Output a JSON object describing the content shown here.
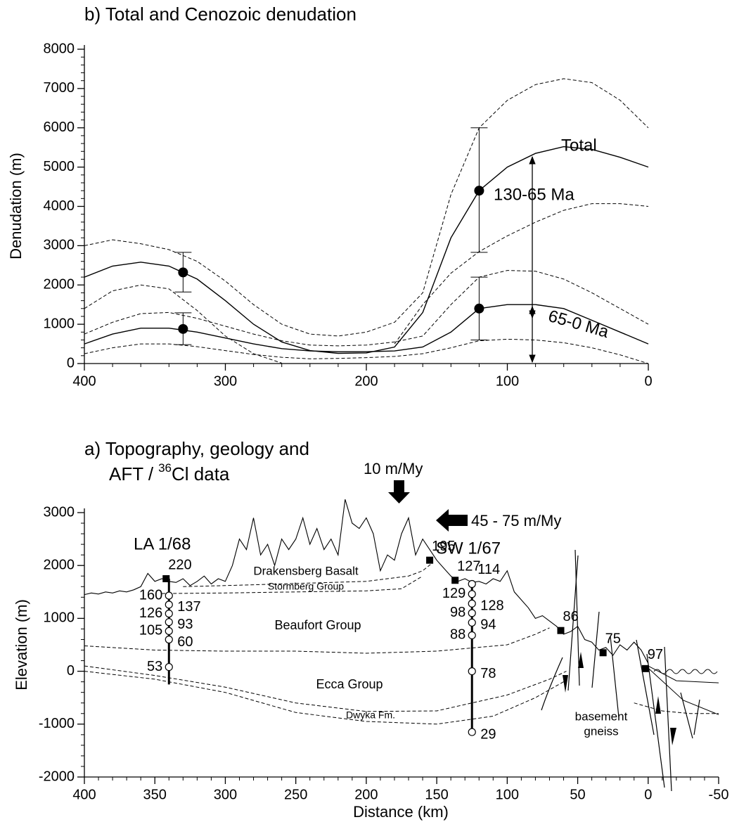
{
  "chart_data": [
    {
      "type": "line",
      "title": "b) Total and Cenozoic denudation",
      "ylabel": "Denudation (m)",
      "xlim": [
        400,
        0
      ],
      "ylim": [
        0,
        8000
      ],
      "xticks": [
        400,
        300,
        200,
        100,
        0
      ],
      "yticks": [
        0,
        1000,
        2000,
        3000,
        4000,
        5000,
        6000,
        7000,
        8000
      ],
      "x": [
        400,
        380,
        360,
        340,
        320,
        300,
        280,
        260,
        240,
        220,
        200,
        180,
        160,
        140,
        120,
        100,
        80,
        60,
        40,
        20,
        0
      ],
      "series": [
        {
          "color": "#000000",
          "dashed": false,
          "values": [
            2200,
            2480,
            2580,
            2480,
            2150,
            1600,
            1000,
            550,
            330,
            260,
            270,
            420,
            1300,
            3200,
            4400,
            5000,
            5350,
            5520,
            5450,
            5250,
            5000
          ]
        },
        {
          "color": "#000000",
          "dashed": true,
          "values": [
            3000,
            3150,
            3050,
            2900,
            2600,
            2100,
            1500,
            1000,
            750,
            700,
            800,
            1050,
            1800,
            4300,
            6000,
            6700,
            7100,
            7250,
            7150,
            6700,
            6000
          ]
        },
        {
          "color": "#000000",
          "dashed": true,
          "values": [
            1400,
            1850,
            2000,
            1900,
            1350,
            700,
            250,
            10,
            null,
            null,
            null,
            500,
            1500,
            2300,
            2850,
            3250,
            3600,
            3900,
            4070,
            4070,
            4000
          ]
        },
        {
          "color": "#000000",
          "dashed": false,
          "values": [
            500,
            750,
            900,
            900,
            800,
            650,
            500,
            380,
            320,
            300,
            300,
            320,
            420,
            800,
            1400,
            1500,
            1500,
            1400,
            1100,
            800,
            500
          ]
        },
        {
          "color": "#000000",
          "dashed": true,
          "values": [
            750,
            1050,
            1270,
            1300,
            1150,
            950,
            750,
            580,
            470,
            450,
            470,
            550,
            700,
            1500,
            2200,
            2370,
            2350,
            2150,
            1800,
            1400,
            1000
          ]
        },
        {
          "color": "#000000",
          "dashed": true,
          "values": [
            250,
            400,
            500,
            500,
            430,
            330,
            230,
            160,
            120,
            130,
            150,
            180,
            250,
            400,
            580,
            620,
            600,
            530,
            400,
            220,
            0
          ]
        }
      ],
      "points": {
        "x": [
          330,
          330,
          120,
          120
        ],
        "values": [
          2320,
          880,
          4400,
          1400
        ],
        "err_low": [
          1820,
          480,
          2830,
          600
        ],
        "err_high": [
          2830,
          1290,
          6000,
          2200
        ]
      },
      "annotations": [
        "Total",
        "130-65 Ma",
        "65-0 Ma"
      ]
    },
    {
      "type": "profile",
      "title": "a) Topography, geology and",
      "title_line2": [
        "AFT /",
        "36",
        "Cl data"
      ],
      "xlabel": "Distance (km)",
      "ylabel": "Elevation (m)",
      "xlim": [
        400,
        -50
      ],
      "ylim": [
        -2000,
        3000
      ],
      "xticks": [
        400,
        350,
        300,
        250,
        200,
        150,
        100,
        50,
        0,
        -50
      ],
      "yticks": [
        -2000,
        -1000,
        0,
        1000,
        2000,
        3000
      ],
      "topography": {
        "x": [
          400,
          395,
          390,
          385,
          380,
          375,
          370,
          365,
          360,
          355,
          350,
          345,
          340,
          335,
          330,
          325,
          320,
          315,
          310,
          305,
          300,
          295,
          290,
          285,
          280,
          275,
          270,
          265,
          260,
          255,
          250,
          245,
          240,
          235,
          230,
          225,
          220,
          215,
          210,
          205,
          200,
          195,
          190,
          185,
          180,
          175,
          170,
          165,
          160,
          155,
          150,
          145,
          140,
          135,
          130,
          125,
          120,
          115,
          110,
          105,
          100,
          95,
          90,
          85,
          80,
          75,
          70,
          65,
          60,
          55,
          50,
          45,
          40,
          35,
          30,
          25,
          20,
          15,
          10,
          5,
          0
        ],
        "values": [
          1450,
          1480,
          1460,
          1500,
          1480,
          1520,
          1500,
          1540,
          1600,
          1850,
          1700,
          1750,
          1700,
          1680,
          1750,
          1620,
          1700,
          1800,
          1650,
          1750,
          1700,
          2000,
          2500,
          2300,
          2900,
          2200,
          2400,
          2000,
          2500,
          2300,
          2500,
          2900,
          2400,
          2700,
          2300,
          2500,
          2200,
          3250,
          2800,
          2700,
          2900,
          2600,
          1900,
          2200,
          2100,
          2600,
          2900,
          2200,
          2500,
          2300,
          2100,
          1950,
          1800,
          1700,
          1750,
          1680,
          1700,
          1650,
          1750,
          1700,
          1900,
          1500,
          1350,
          1200,
          1000,
          1050,
          950,
          850,
          700,
          750,
          850,
          600,
          550,
          400,
          450,
          300,
          500,
          400,
          550,
          400,
          150
        ]
      },
      "boundaries": [
        {
          "dashed": true,
          "x": [
            330,
            300,
            250,
            200,
            170,
            160,
            153
          ],
          "values": [
            1600,
            1620,
            1660,
            1700,
            1800,
            1900,
            2050
          ]
        },
        {
          "dashed": true,
          "x": [
            345,
            300,
            250,
            200,
            175,
            160
          ],
          "values": [
            1470,
            1480,
            1500,
            1520,
            1560,
            1800
          ]
        },
        {
          "dashed": true,
          "x": [
            400,
            350,
            300,
            250,
            200,
            150,
            100,
            80,
            70
          ],
          "values": [
            480,
            400,
            380,
            380,
            340,
            380,
            500,
            700,
            820
          ]
        },
        {
          "dashed": true,
          "x": [
            400,
            350,
            300,
            250,
            200,
            150,
            100,
            70,
            58
          ],
          "values": [
            100,
            -80,
            -300,
            -600,
            -760,
            -750,
            -450,
            -150,
            0
          ]
        },
        {
          "dashed": true,
          "x": [
            400,
            350,
            300,
            250,
            200,
            150,
            110,
            80,
            60
          ],
          "values": [
            0,
            -150,
            -400,
            -780,
            -950,
            -1000,
            -850,
            -500,
            -200
          ]
        },
        {
          "dashed": true,
          "x": [
            10,
            -10,
            -30,
            -50
          ],
          "values": [
            -600,
            -750,
            -800,
            -800
          ]
        },
        {
          "dashed": false,
          "x": [
            0,
            -20,
            -50
          ],
          "values": [
            100,
            -180,
            -220
          ]
        },
        {
          "dashed": false,
          "x": [
            0,
            -25,
            -50
          ],
          "values": [
            60,
            -550,
            -820
          ]
        }
      ],
      "boreholes": [
        {
          "name": "LA 1/68",
          "x": 340,
          "top": 1750,
          "bottom": -250,
          "elevations": [
            1430,
            1260,
            1090,
            930,
            760,
            600,
            80
          ],
          "ages": [
            160,
            137,
            126,
            93,
            105,
            60,
            53
          ]
        },
        {
          "name": "SW 1/67",
          "x": 125,
          "top": 1650,
          "bottom": -1150,
          "elevations": [
            1650,
            1460,
            1280,
            1100,
            920,
            680,
            0,
            -1150
          ],
          "ages": [
            114,
            129,
            128,
            98,
            94,
            88,
            78,
            29
          ]
        }
      ],
      "outcrop_samples": {
        "x": [
          342,
          155,
          137,
          62,
          32,
          2
        ],
        "elevations": [
          1750,
          2100,
          1720,
          770,
          350,
          50
        ],
        "ages": [
          220,
          195,
          127,
          86,
          75,
          97
        ]
      },
      "unit_labels": [
        "Drakensberg Basalt",
        "Stormberg Group",
        "Beaufort Group",
        "Ecca Group",
        "Dwyka Fm.",
        "basement",
        "gneiss"
      ],
      "rate_labels": [
        "10 m/My",
        "45 - 75 m/My"
      ]
    }
  ]
}
